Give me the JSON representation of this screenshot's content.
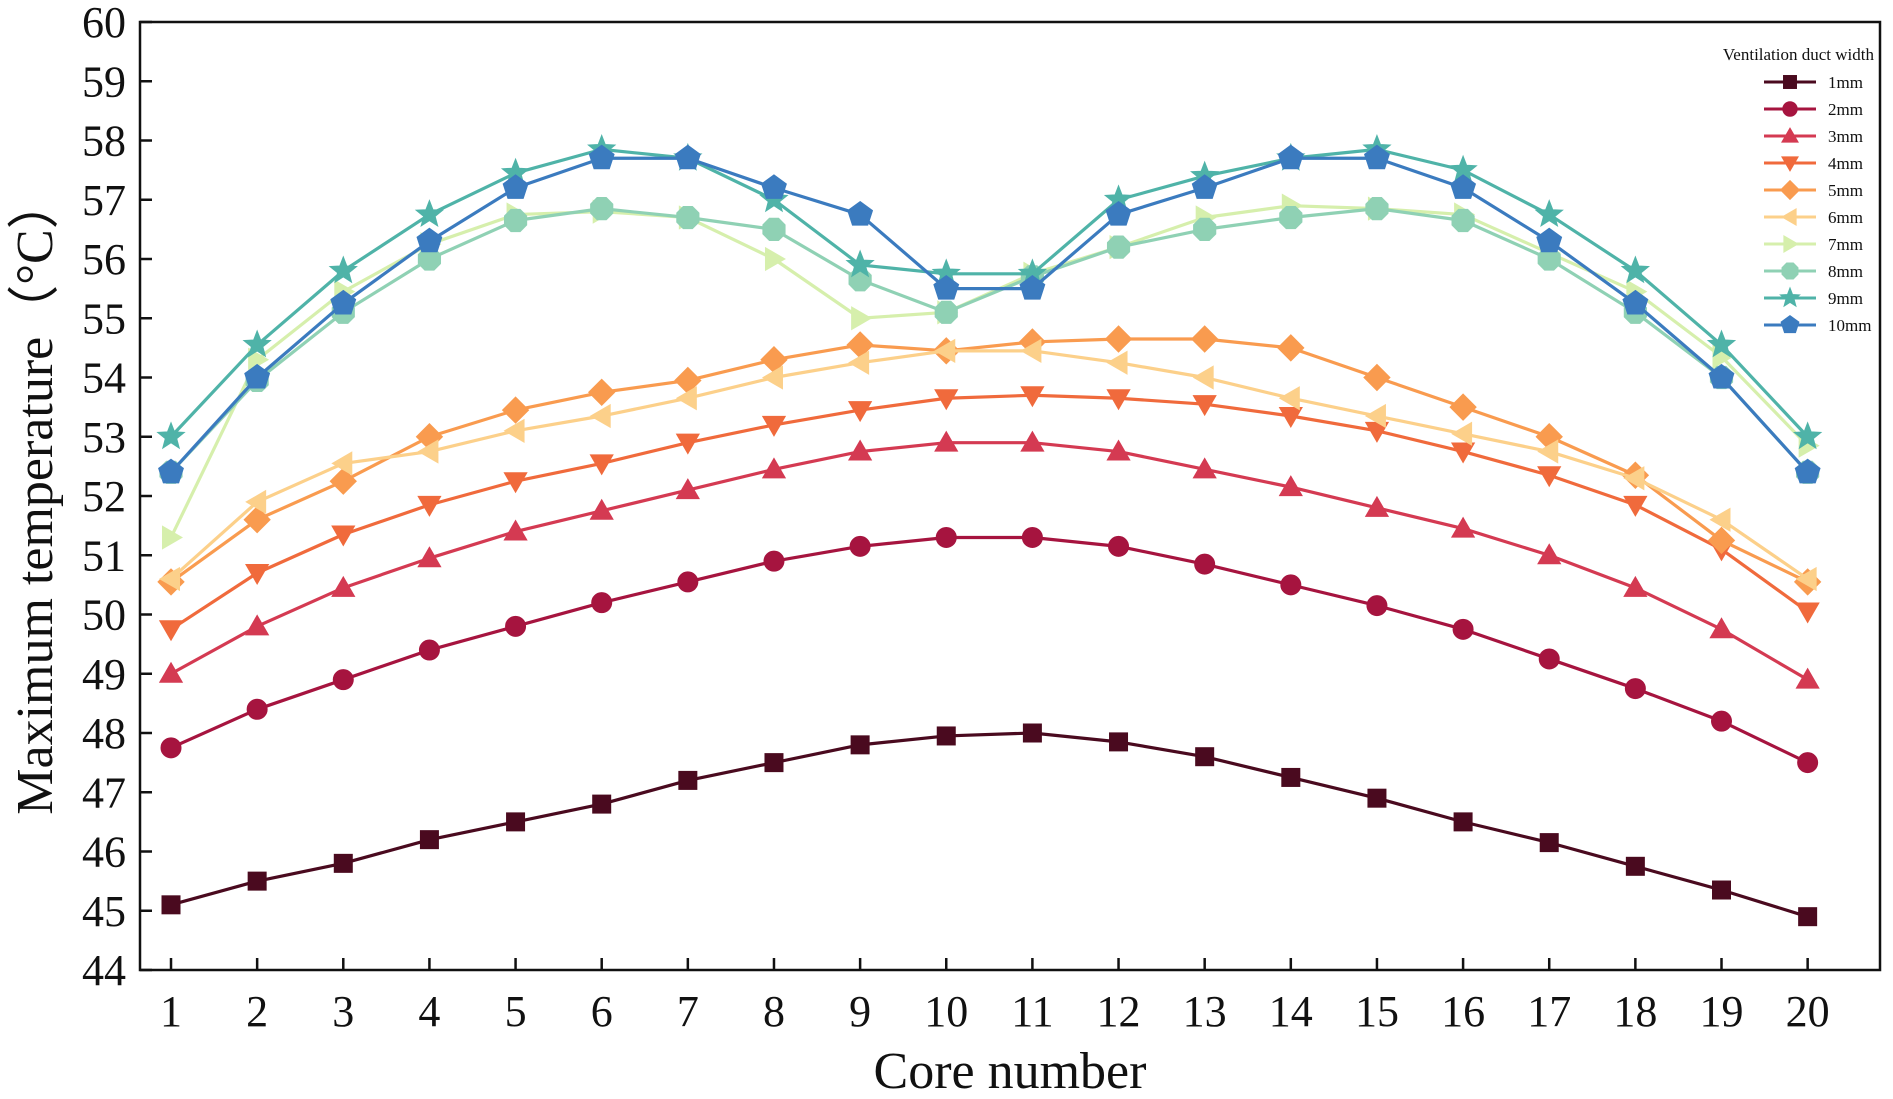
{
  "chart_data": {
    "type": "line",
    "title": "",
    "xlabel": "Core number",
    "ylabel": "Maximum temperature（°C）",
    "x": [
      1,
      2,
      3,
      4,
      5,
      6,
      7,
      8,
      9,
      10,
      11,
      12,
      13,
      14,
      15,
      16,
      17,
      18,
      19,
      20
    ],
    "x_ticks": [
      "1",
      "2",
      "3",
      "4",
      "5",
      "6",
      "7",
      "8",
      "9",
      "10",
      "11",
      "12",
      "13",
      "14",
      "15",
      "16",
      "17",
      "18",
      "19",
      "20"
    ],
    "ylim": [
      44,
      60
    ],
    "y_ticks": [
      "44",
      "45",
      "46",
      "47",
      "48",
      "49",
      "50",
      "51",
      "52",
      "53",
      "54",
      "55",
      "56",
      "57",
      "58",
      "59",
      "60"
    ],
    "grid": false,
    "legend": {
      "title": "Ventilation duct width",
      "position": "top-right"
    },
    "series": [
      {
        "name": "1mm",
        "color": "#4a0a1f",
        "marker": "square",
        "values": [
          45.1,
          45.5,
          45.8,
          46.2,
          46.5,
          46.8,
          47.2,
          47.5,
          47.8,
          47.95,
          48.0,
          47.85,
          47.6,
          47.25,
          46.9,
          46.5,
          46.15,
          45.75,
          45.35,
          44.9
        ]
      },
      {
        "name": "2mm",
        "color": "#a6143f",
        "marker": "circle",
        "values": [
          47.75,
          48.4,
          48.9,
          49.4,
          49.8,
          50.2,
          50.55,
          50.9,
          51.15,
          51.3,
          51.3,
          51.15,
          50.85,
          50.5,
          50.15,
          49.75,
          49.25,
          48.75,
          48.2,
          47.5
        ]
      },
      {
        "name": "3mm",
        "color": "#d43a52",
        "marker": "triangle-up",
        "values": [
          49.0,
          49.8,
          50.45,
          50.95,
          51.4,
          51.75,
          52.1,
          52.45,
          52.75,
          52.9,
          52.9,
          52.75,
          52.45,
          52.15,
          51.8,
          51.45,
          51.0,
          50.45,
          49.75,
          48.9
        ]
      },
      {
        "name": "4mm",
        "color": "#f06a3c",
        "marker": "triangle-down",
        "values": [
          49.75,
          50.7,
          51.35,
          51.85,
          52.25,
          52.55,
          52.9,
          53.2,
          53.45,
          53.65,
          53.7,
          53.65,
          53.55,
          53.35,
          53.1,
          52.75,
          52.35,
          51.85,
          51.1,
          50.05
        ]
      },
      {
        "name": "5mm",
        "color": "#f99b4f",
        "marker": "diamond",
        "values": [
          50.55,
          51.6,
          52.25,
          53.0,
          53.45,
          53.75,
          53.95,
          54.3,
          54.55,
          54.45,
          54.6,
          54.65,
          54.65,
          54.5,
          54.0,
          53.5,
          53.0,
          52.35,
          51.25,
          50.55
        ]
      },
      {
        "name": "6mm",
        "color": "#fcd08a",
        "marker": "triangle-left",
        "values": [
          50.6,
          51.9,
          52.55,
          52.75,
          53.1,
          53.35,
          53.65,
          54.0,
          54.25,
          54.45,
          54.45,
          54.25,
          54.0,
          53.65,
          53.35,
          53.05,
          52.75,
          52.3,
          51.6,
          50.6
        ]
      },
      {
        "name": "7mm",
        "color": "#d6efac",
        "marker": "triangle-right",
        "values": [
          51.3,
          54.3,
          55.45,
          56.25,
          56.75,
          56.8,
          56.7,
          56.0,
          55.0,
          55.1,
          55.75,
          56.2,
          56.7,
          56.9,
          56.85,
          56.75,
          56.1,
          55.45,
          54.35,
          52.85
        ]
      },
      {
        "name": "8mm",
        "color": "#8fd1b4",
        "marker": "octagon",
        "values": [
          52.4,
          53.95,
          55.1,
          56.0,
          56.65,
          56.85,
          56.7,
          56.5,
          55.65,
          55.1,
          55.7,
          56.2,
          56.5,
          56.7,
          56.85,
          56.65,
          56.0,
          55.1,
          54.0,
          52.4
        ]
      },
      {
        "name": "9mm",
        "color": "#4fb3a8",
        "marker": "star",
        "values": [
          53.0,
          54.55,
          55.8,
          56.75,
          57.45,
          57.85,
          57.7,
          57.0,
          55.9,
          55.75,
          55.75,
          57.0,
          57.4,
          57.7,
          57.85,
          57.5,
          56.75,
          55.8,
          54.55,
          53.0
        ]
      },
      {
        "name": "10mm",
        "color": "#3b7bbf",
        "marker": "pentagon",
        "values": [
          52.4,
          54.0,
          55.25,
          56.3,
          57.2,
          57.7,
          57.7,
          57.2,
          56.75,
          55.5,
          55.5,
          56.75,
          57.2,
          57.7,
          57.7,
          57.2,
          56.3,
          55.25,
          54.0,
          52.4
        ]
      }
    ]
  }
}
